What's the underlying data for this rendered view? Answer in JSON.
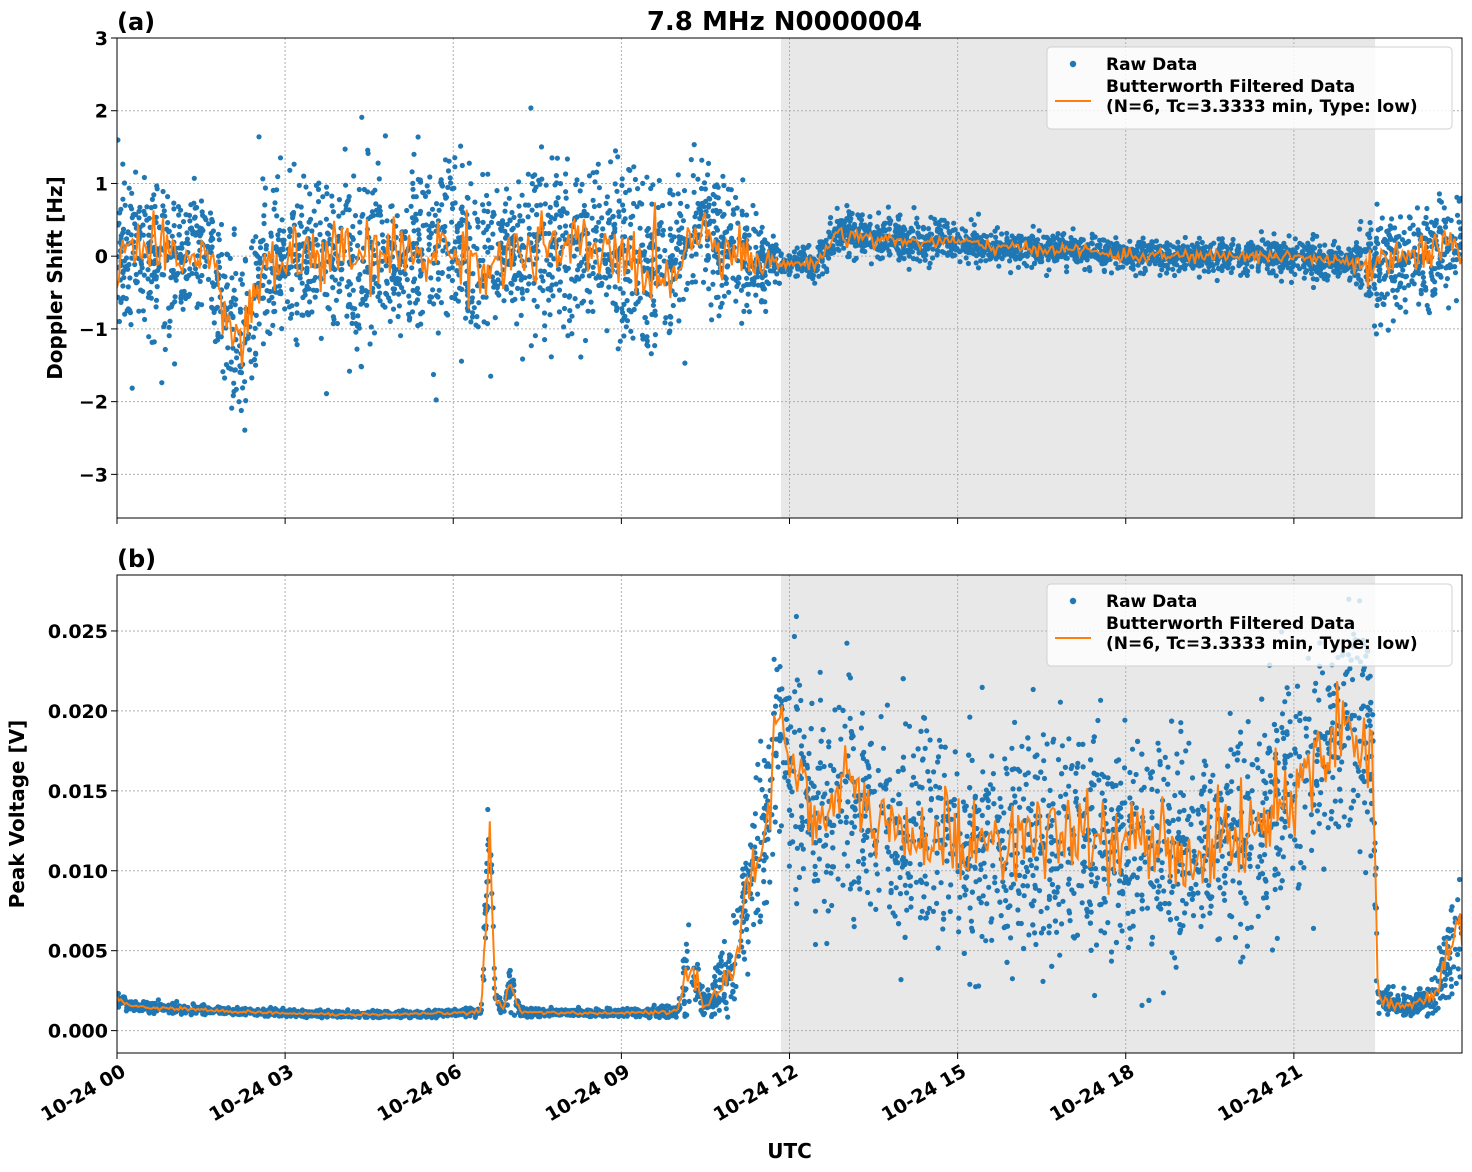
{
  "chart_data": [
    {
      "type": "scatter",
      "panel_label": "(a)",
      "title": "7.8 MHz N0000004",
      "ylabel": "Doppler Shift [Hz]",
      "xlabel": "",
      "x_range_hours": [
        0,
        24
      ],
      "ylim": [
        -3.6,
        3.0
      ],
      "yticks": [
        -3,
        -2,
        -1,
        0,
        1,
        2,
        3
      ],
      "ytick_labels": [
        "−3",
        "−2",
        "−1",
        "0",
        "1",
        "2",
        "3"
      ],
      "grid": true,
      "legend_position": "top-right",
      "shaded_interval_hours": [
        11.85,
        22.45
      ],
      "series": [
        {
          "name": "Raw Data",
          "kind": "points",
          "color": "#1f77b4"
        },
        {
          "name": "Butterworth Filtered Data\n(N=6, Tc=3.3333 min, Type: low)",
          "kind": "line",
          "color": "#ff7f0e"
        }
      ],
      "approx_profile": {
        "x": [
          0,
          0.5,
          1,
          1.5,
          1.8,
          2.0,
          2.2,
          2.5,
          3,
          4,
          5,
          6,
          6.3,
          6.6,
          7,
          8,
          9,
          9.8,
          10.4,
          10.8,
          11.4,
          11.9,
          12.5,
          12.8,
          13,
          14,
          15,
          16,
          17,
          18,
          19,
          20,
          21,
          22,
          22.4,
          23,
          24
        ],
        "center": [
          0.1,
          0.1,
          -0.1,
          0.1,
          -0.3,
          -0.9,
          -1.3,
          -0.4,
          0.0,
          0.0,
          0.0,
          0.1,
          0.0,
          -0.2,
          0.0,
          0.1,
          0.0,
          -0.3,
          0.4,
          0.2,
          -0.1,
          -0.1,
          -0.1,
          0.3,
          0.3,
          0.2,
          0.2,
          0.1,
          0.1,
          0.0,
          0.0,
          0.0,
          0.0,
          -0.1,
          -0.2,
          0.0,
          0.1
        ],
        "spread": [
          1.0,
          1.0,
          0.9,
          0.8,
          0.9,
          1.1,
          1.2,
          1.2,
          1.1,
          1.1,
          1.1,
          1.1,
          1.1,
          1.0,
          1.1,
          1.1,
          1.1,
          1.0,
          0.9,
          0.9,
          0.6,
          0.12,
          0.2,
          0.3,
          0.3,
          0.25,
          0.2,
          0.2,
          0.2,
          0.2,
          0.2,
          0.2,
          0.25,
          0.2,
          0.6,
          0.7,
          0.6
        ]
      }
    },
    {
      "type": "scatter",
      "panel_label": "(b)",
      "title": "",
      "ylabel": "Peak Voltage [V]",
      "xlabel": "UTC",
      "x_range_hours": [
        0,
        24
      ],
      "ylim": [
        -0.0014,
        0.0285
      ],
      "yticks": [
        0.0,
        0.005,
        0.01,
        0.015,
        0.02,
        0.025
      ],
      "ytick_labels": [
        "0.000",
        "0.005",
        "0.010",
        "0.015",
        "0.020",
        "0.025"
      ],
      "xticks_hours": [
        0,
        3,
        6,
        9,
        12,
        15,
        18,
        21
      ],
      "xtick_labels": [
        "10-24 00",
        "10-24 03",
        "10-24 06",
        "10-24 09",
        "10-24 12",
        "10-24 15",
        "10-24 18",
        "10-24 21"
      ],
      "grid": true,
      "legend_position": "top-right",
      "shaded_interval_hours": [
        11.85,
        22.45
      ],
      "series": [
        {
          "name": "Raw Data",
          "kind": "points",
          "color": "#1f77b4"
        },
        {
          "name": "Butterworth Filtered Data\n(N=6, Tc=3.3333 min, Type: low)",
          "kind": "line",
          "color": "#ff7f0e"
        }
      ],
      "approx_profile": {
        "x": [
          0,
          0.3,
          1,
          2,
          3,
          4,
          5,
          6,
          6.5,
          6.65,
          6.75,
          6.9,
          7.0,
          7.2,
          8,
          9,
          10,
          10.2,
          10.5,
          11.0,
          11.3,
          11.6,
          11.8,
          12.0,
          12.5,
          13,
          14,
          15,
          16,
          17,
          18,
          19,
          20,
          21,
          21.5,
          22,
          22.4,
          22.5,
          23,
          23.5,
          24
        ],
        "center": [
          0.002,
          0.0015,
          0.0014,
          0.0012,
          0.0011,
          0.001,
          0.001,
          0.0011,
          0.0012,
          0.012,
          0.002,
          0.0013,
          0.003,
          0.0012,
          0.0011,
          0.0011,
          0.0012,
          0.004,
          0.0015,
          0.004,
          0.009,
          0.013,
          0.02,
          0.018,
          0.013,
          0.015,
          0.012,
          0.012,
          0.012,
          0.012,
          0.012,
          0.011,
          0.012,
          0.015,
          0.018,
          0.019,
          0.018,
          0.002,
          0.0015,
          0.002,
          0.007
        ],
        "spread": [
          0.0004,
          0.0003,
          0.0003,
          0.0002,
          0.0002,
          0.0002,
          0.0002,
          0.0002,
          0.0003,
          0.004,
          0.0006,
          0.0003,
          0.0012,
          0.0003,
          0.0002,
          0.0002,
          0.0004,
          0.0025,
          0.0006,
          0.003,
          0.004,
          0.006,
          0.005,
          0.007,
          0.006,
          0.007,
          0.006,
          0.006,
          0.006,
          0.006,
          0.006,
          0.006,
          0.006,
          0.007,
          0.006,
          0.006,
          0.006,
          0.0008,
          0.0006,
          0.001,
          0.005
        ]
      }
    }
  ]
}
